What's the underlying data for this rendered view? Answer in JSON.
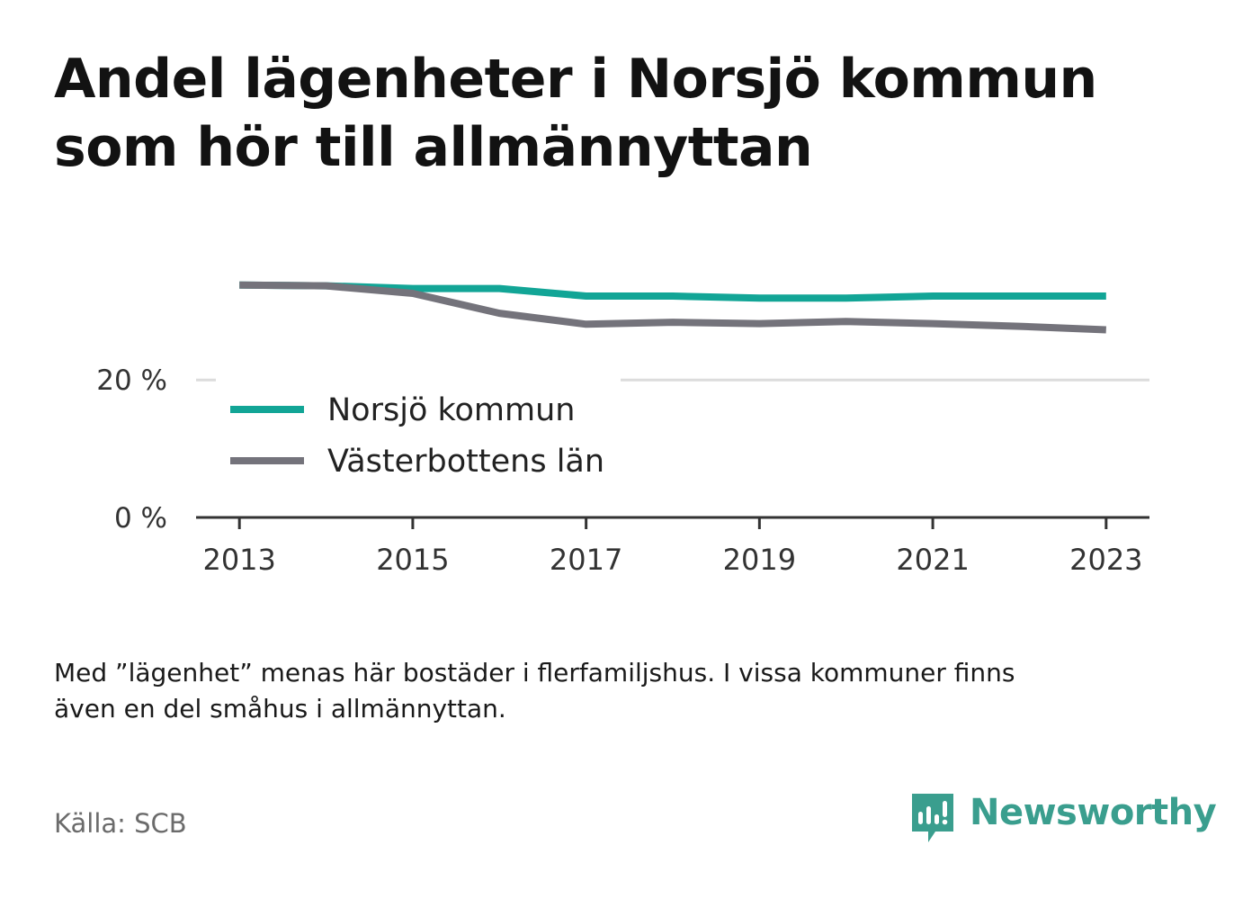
{
  "title": {
    "line1": "Andel lägenheter i Norsjö kommun",
    "line2": "som hör till allmännyttan"
  },
  "chart_data": {
    "type": "line",
    "x": [
      2013,
      2014,
      2015,
      2016,
      2017,
      2018,
      2019,
      2020,
      2021,
      2022,
      2023
    ],
    "series": [
      {
        "name": "Norsjö kommun",
        "color": "#12a596",
        "values": [
          33.8,
          33.7,
          33.3,
          33.3,
          32.2,
          32.2,
          31.9,
          31.9,
          32.2,
          32.2,
          32.2
        ]
      },
      {
        "name": "Västerbottens län",
        "color": "#74737b",
        "values": [
          33.8,
          33.7,
          32.6,
          29.7,
          28.1,
          28.4,
          28.2,
          28.5,
          28.2,
          27.8,
          27.3
        ]
      }
    ],
    "y_ticks": [
      {
        "value": 0,
        "label": "0 %"
      },
      {
        "value": 20,
        "label": "20 %"
      }
    ],
    "x_ticks": [
      {
        "value": 2013,
        "label": "2013"
      },
      {
        "value": 2015,
        "label": "2015"
      },
      {
        "value": 2017,
        "label": "2017"
      },
      {
        "value": 2019,
        "label": "2019"
      },
      {
        "value": 2021,
        "label": "2021"
      },
      {
        "value": 2023,
        "label": "2023"
      }
    ],
    "xlim": [
      2012.5,
      2023.5
    ],
    "ylim": [
      0,
      36
    ],
    "grid": true,
    "legend_placement": "inside-left"
  },
  "note": {
    "line1": "Med ”lägenhet” menas här bostäder i flerfamiljshus. I vissa kommuner finns",
    "line2": "även en del småhus i allmännyttan."
  },
  "source": "Källa: SCB",
  "brand": {
    "name": "Newsworthy",
    "icon": "newsworthy-logo-icon",
    "color": "#3a9e8e"
  }
}
